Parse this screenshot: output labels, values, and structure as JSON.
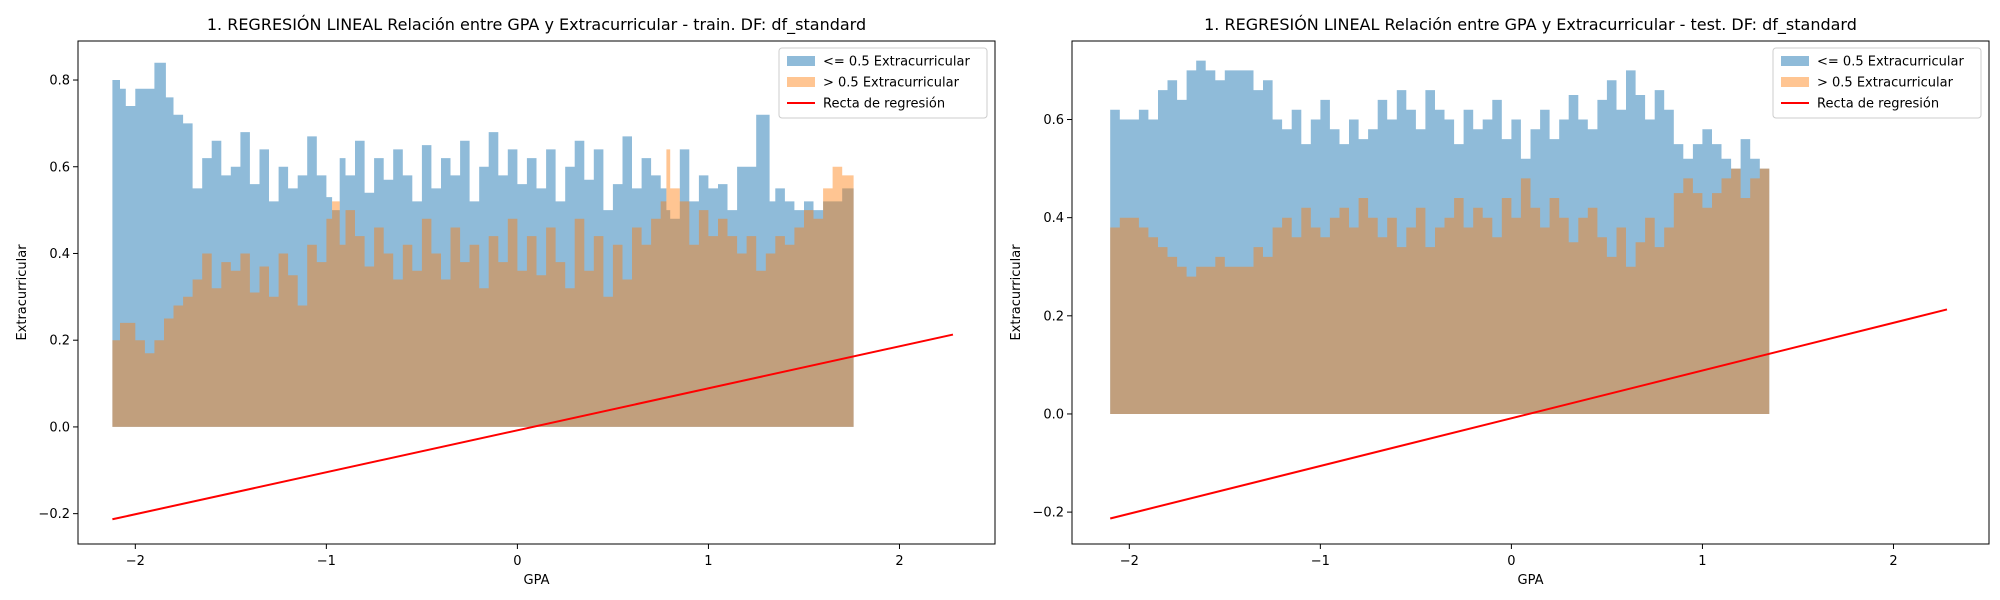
{
  "chart_data": [
    {
      "type": "area",
      "title": "1. REGRESIÓN LINEAL Relación entre GPA y Extracurricular - train. DF: df_standard",
      "xlabel": "GPA",
      "ylabel": "Extracurricular",
      "xlim": [
        -2.3,
        2.5
      ],
      "ylim": [
        -0.27,
        0.89
      ],
      "xticks": [
        -2,
        -1,
        0,
        1,
        2
      ],
      "xtick_labels": [
        "−2",
        "−1",
        "0",
        "1",
        "2"
      ],
      "yticks": [
        -0.2,
        0.0,
        0.2,
        0.4,
        0.6,
        0.8
      ],
      "ytick_labels": [
        "−0.2",
        "0.0",
        "0.2",
        "0.4",
        "0.6",
        "0.8"
      ],
      "grid": false,
      "legend_position": "top-right",
      "series": [
        {
          "name": "<= 0.5 Extracurricular",
          "kind": "fill",
          "color": "#1f77b4",
          "alpha": 0.5,
          "x": [
            -2.12,
            -2.08,
            -2.05,
            -2.0,
            -1.95,
            -1.9,
            -1.87,
            -1.84,
            -1.8,
            -1.75,
            -1.7,
            -1.65,
            -1.6,
            -1.55,
            -1.5,
            -1.45,
            -1.4,
            -1.35,
            -1.3,
            -1.25,
            -1.2,
            -1.15,
            -1.1,
            -1.05,
            -1.0,
            -0.97,
            -0.93,
            -0.9,
            -0.85,
            -0.8,
            -0.75,
            -0.7,
            -0.65,
            -0.6,
            -0.55,
            -0.5,
            -0.45,
            -0.4,
            -0.35,
            -0.3,
            -0.25,
            -0.2,
            -0.15,
            -0.1,
            -0.05,
            0.0,
            0.05,
            0.1,
            0.15,
            0.2,
            0.25,
            0.3,
            0.35,
            0.4,
            0.45,
            0.5,
            0.55,
            0.6,
            0.65,
            0.7,
            0.75,
            0.78,
            0.8,
            0.85,
            0.9,
            0.95,
            1.0,
            1.05,
            1.1,
            1.15,
            1.2,
            1.25,
            1.28,
            1.32,
            1.35,
            1.4,
            1.45,
            1.5,
            1.55,
            1.6,
            1.65,
            1.7,
            1.76
          ],
          "y": [
            0.8,
            0.78,
            0.74,
            0.78,
            0.78,
            0.84,
            0.84,
            0.76,
            0.72,
            0.7,
            0.55,
            0.62,
            0.66,
            0.58,
            0.6,
            0.68,
            0.56,
            0.64,
            0.52,
            0.6,
            0.55,
            0.58,
            0.67,
            0.58,
            0.53,
            0.5,
            0.62,
            0.58,
            0.66,
            0.54,
            0.62,
            0.57,
            0.64,
            0.58,
            0.52,
            0.65,
            0.55,
            0.62,
            0.58,
            0.66,
            0.52,
            0.6,
            0.68,
            0.58,
            0.64,
            0.56,
            0.62,
            0.55,
            0.64,
            0.52,
            0.6,
            0.66,
            0.57,
            0.64,
            0.5,
            0.56,
            0.67,
            0.55,
            0.62,
            0.58,
            0.55,
            0.5,
            0.48,
            0.64,
            0.52,
            0.58,
            0.55,
            0.56,
            0.5,
            0.6,
            0.6,
            0.72,
            0.72,
            0.52,
            0.55,
            0.52,
            0.5,
            0.52,
            0.5,
            0.52,
            0.52,
            0.55,
            0.56
          ]
        },
        {
          "name": "> 0.5 Extracurricular",
          "kind": "fill",
          "color": "#ff7f0e",
          "alpha": 0.45,
          "x": [
            -2.12,
            -2.08,
            -2.05,
            -2.0,
            -1.95,
            -1.9,
            -1.85,
            -1.8,
            -1.75,
            -1.7,
            -1.65,
            -1.6,
            -1.55,
            -1.5,
            -1.45,
            -1.4,
            -1.35,
            -1.3,
            -1.25,
            -1.2,
            -1.15,
            -1.1,
            -1.05,
            -1.0,
            -0.97,
            -0.93,
            -0.9,
            -0.85,
            -0.8,
            -0.75,
            -0.7,
            -0.65,
            -0.6,
            -0.55,
            -0.5,
            -0.45,
            -0.4,
            -0.35,
            -0.3,
            -0.25,
            -0.2,
            -0.15,
            -0.1,
            -0.05,
            0.0,
            0.05,
            0.1,
            0.15,
            0.2,
            0.25,
            0.3,
            0.35,
            0.4,
            0.45,
            0.5,
            0.55,
            0.6,
            0.65,
            0.7,
            0.75,
            0.78,
            0.8,
            0.85,
            0.9,
            0.95,
            1.0,
            1.05,
            1.1,
            1.15,
            1.2,
            1.25,
            1.3,
            1.35,
            1.4,
            1.45,
            1.5,
            1.55,
            1.6,
            1.65,
            1.7,
            1.76
          ],
          "y": [
            0.2,
            0.24,
            0.24,
            0.2,
            0.17,
            0.2,
            0.25,
            0.28,
            0.3,
            0.34,
            0.4,
            0.32,
            0.38,
            0.36,
            0.4,
            0.31,
            0.37,
            0.3,
            0.4,
            0.35,
            0.28,
            0.42,
            0.38,
            0.48,
            0.52,
            0.42,
            0.5,
            0.44,
            0.37,
            0.46,
            0.4,
            0.34,
            0.42,
            0.36,
            0.48,
            0.4,
            0.34,
            0.46,
            0.38,
            0.42,
            0.32,
            0.44,
            0.38,
            0.48,
            0.36,
            0.44,
            0.35,
            0.46,
            0.38,
            0.32,
            0.48,
            0.36,
            0.44,
            0.3,
            0.42,
            0.34,
            0.46,
            0.42,
            0.48,
            0.52,
            0.64,
            0.55,
            0.52,
            0.42,
            0.5,
            0.44,
            0.48,
            0.44,
            0.4,
            0.44,
            0.36,
            0.4,
            0.44,
            0.42,
            0.46,
            0.5,
            0.48,
            0.55,
            0.6,
            0.58,
            0.6
          ]
        },
        {
          "name": "Recta de regresión",
          "kind": "line",
          "color": "#ff0000",
          "x": [
            -2.12,
            2.28
          ],
          "y": [
            -0.213,
            0.213
          ]
        }
      ]
    },
    {
      "type": "area",
      "title": "1. REGRESIÓN LINEAL Relación entre GPA y Extracurricular - test. DF: df_standard",
      "xlabel": "GPA",
      "ylabel": "Extracurricular",
      "xlim": [
        -2.3,
        2.5
      ],
      "ylim": [
        -0.265,
        0.76
      ],
      "xticks": [
        -2,
        -1,
        0,
        1,
        2
      ],
      "xtick_labels": [
        "−2",
        "−1",
        "0",
        "1",
        "2"
      ],
      "yticks": [
        -0.2,
        0.0,
        0.2,
        0.4,
        0.6
      ],
      "ytick_labels": [
        "−0.2",
        "0.0",
        "0.2",
        "0.4",
        "0.6"
      ],
      "grid": false,
      "legend_position": "top-right",
      "series": [
        {
          "name": "<= 0.5 Extracurricular",
          "kind": "fill",
          "color": "#1f77b4",
          "alpha": 0.5,
          "x": [
            -2.1,
            -2.05,
            -2.0,
            -1.95,
            -1.9,
            -1.85,
            -1.8,
            -1.75,
            -1.7,
            -1.65,
            -1.6,
            -1.55,
            -1.5,
            -1.45,
            -1.4,
            -1.35,
            -1.3,
            -1.25,
            -1.2,
            -1.15,
            -1.1,
            -1.05,
            -1.0,
            -0.95,
            -0.9,
            -0.85,
            -0.8,
            -0.75,
            -0.7,
            -0.65,
            -0.6,
            -0.55,
            -0.5,
            -0.45,
            -0.4,
            -0.35,
            -0.3,
            -0.25,
            -0.2,
            -0.15,
            -0.1,
            -0.05,
            0.0,
            0.05,
            0.1,
            0.15,
            0.2,
            0.25,
            0.3,
            0.35,
            0.4,
            0.45,
            0.5,
            0.55,
            0.6,
            0.65,
            0.7,
            0.75,
            0.8,
            0.85,
            0.9,
            0.95,
            1.0,
            1.05,
            1.1,
            1.15,
            1.2,
            1.25,
            1.3,
            1.35
          ],
          "y": [
            0.62,
            0.6,
            0.6,
            0.62,
            0.6,
            0.66,
            0.68,
            0.64,
            0.7,
            0.72,
            0.7,
            0.68,
            0.7,
            0.7,
            0.7,
            0.66,
            0.68,
            0.6,
            0.58,
            0.62,
            0.55,
            0.6,
            0.64,
            0.58,
            0.55,
            0.6,
            0.56,
            0.58,
            0.64,
            0.6,
            0.66,
            0.62,
            0.58,
            0.66,
            0.62,
            0.6,
            0.55,
            0.62,
            0.58,
            0.6,
            0.64,
            0.56,
            0.6,
            0.52,
            0.58,
            0.62,
            0.56,
            0.6,
            0.65,
            0.6,
            0.58,
            0.64,
            0.68,
            0.62,
            0.7,
            0.65,
            0.6,
            0.66,
            0.62,
            0.55,
            0.52,
            0.55,
            0.58,
            0.55,
            0.52,
            0.5,
            0.56,
            0.52,
            0.5,
            0.5
          ]
        },
        {
          "name": "> 0.5 Extracurricular",
          "kind": "fill",
          "color": "#ff7f0e",
          "alpha": 0.45,
          "x": [
            -2.1,
            -2.05,
            -2.0,
            -1.95,
            -1.9,
            -1.85,
            -1.8,
            -1.75,
            -1.7,
            -1.65,
            -1.6,
            -1.55,
            -1.5,
            -1.45,
            -1.4,
            -1.35,
            -1.3,
            -1.25,
            -1.2,
            -1.15,
            -1.1,
            -1.05,
            -1.0,
            -0.95,
            -0.9,
            -0.85,
            -0.8,
            -0.75,
            -0.7,
            -0.65,
            -0.6,
            -0.55,
            -0.5,
            -0.45,
            -0.4,
            -0.35,
            -0.3,
            -0.25,
            -0.2,
            -0.15,
            -0.1,
            -0.05,
            0.0,
            0.05,
            0.1,
            0.15,
            0.2,
            0.25,
            0.3,
            0.35,
            0.4,
            0.45,
            0.5,
            0.55,
            0.6,
            0.65,
            0.7,
            0.75,
            0.8,
            0.85,
            0.9,
            0.95,
            1.0,
            1.05,
            1.1,
            1.15,
            1.2,
            1.25,
            1.3,
            1.35
          ],
          "y": [
            0.38,
            0.4,
            0.4,
            0.38,
            0.36,
            0.34,
            0.32,
            0.3,
            0.28,
            0.3,
            0.3,
            0.32,
            0.3,
            0.3,
            0.3,
            0.34,
            0.32,
            0.38,
            0.4,
            0.36,
            0.42,
            0.38,
            0.36,
            0.4,
            0.42,
            0.38,
            0.44,
            0.4,
            0.36,
            0.4,
            0.34,
            0.38,
            0.42,
            0.34,
            0.38,
            0.4,
            0.44,
            0.38,
            0.42,
            0.4,
            0.36,
            0.44,
            0.4,
            0.48,
            0.42,
            0.38,
            0.44,
            0.4,
            0.35,
            0.4,
            0.42,
            0.36,
            0.32,
            0.38,
            0.3,
            0.35,
            0.4,
            0.34,
            0.38,
            0.45,
            0.48,
            0.45,
            0.42,
            0.45,
            0.48,
            0.5,
            0.44,
            0.48,
            0.5,
            0.54
          ]
        },
        {
          "name": "Recta de regresión",
          "kind": "line",
          "color": "#ff0000",
          "x": [
            -2.1,
            2.28
          ],
          "y": [
            -0.213,
            0.213
          ]
        }
      ]
    }
  ]
}
